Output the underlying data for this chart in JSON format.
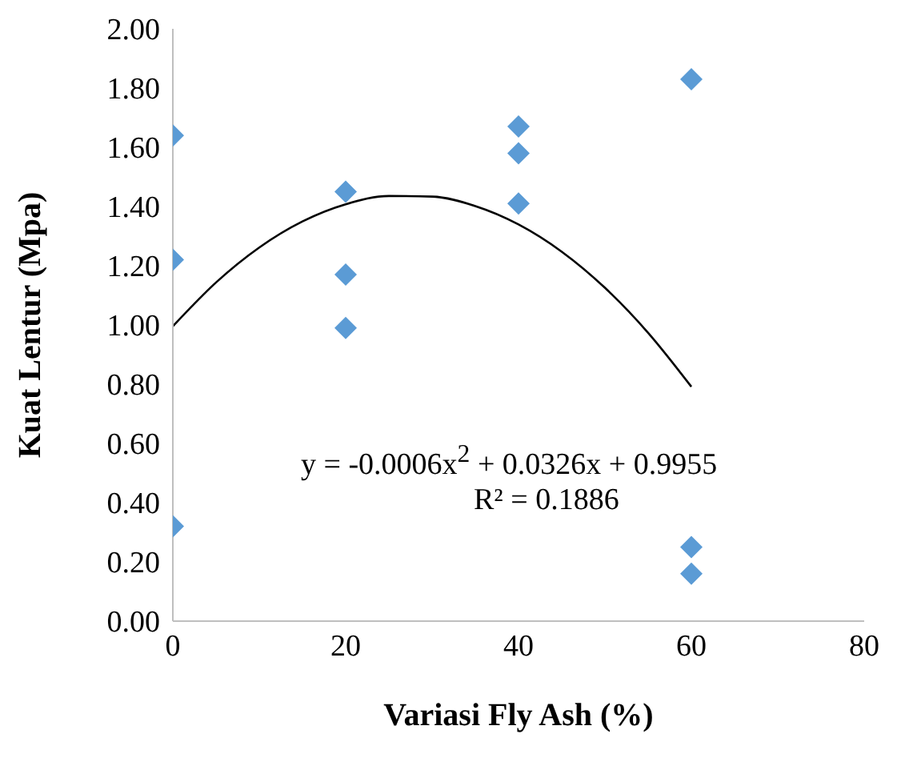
{
  "chart_data": {
    "type": "scatter",
    "xlabel": "Variasi Fly Ash (%)",
    "ylabel": "Kuat  Lentur (Mpa)",
    "xlim": [
      0,
      80
    ],
    "xticks": [
      0,
      20,
      40,
      60,
      80
    ],
    "ylim": [
      0,
      2
    ],
    "yticks": [
      {
        "value": 0,
        "label": "0.00"
      },
      {
        "value": 0.2,
        "label": "0.20"
      },
      {
        "value": 0.4,
        "label": "0.40"
      },
      {
        "value": 0.6,
        "label": "0.60"
      },
      {
        "value": 0.8,
        "label": "0.80"
      },
      {
        "value": 1,
        "label": "1.00"
      },
      {
        "value": 1.2,
        "label": "1.20"
      },
      {
        "value": 1.4,
        "label": "1.40"
      },
      {
        "value": 1.6,
        "label": "1.60"
      },
      {
        "value": 1.8,
        "label": "1.80"
      },
      {
        "value": 2,
        "label": "2.00"
      }
    ],
    "marker": "diamond",
    "series": [
      {
        "color": "#5b9bd5",
        "x": [
          0,
          0,
          0,
          20,
          20,
          20,
          40,
          40,
          40,
          60,
          60,
          60
        ],
        "values": [
          1.64,
          1.22,
          0.32,
          1.45,
          1.17,
          0.99,
          1.67,
          1.58,
          1.41,
          1.83,
          0.25,
          0.16
        ]
      },
      {
        "type": "line",
        "color": "#000000",
        "marker": "none",
        "x": [
          0,
          5,
          10,
          15,
          20,
          25,
          30,
          35,
          40,
          45,
          50,
          55,
          60
        ],
        "values": [
          0.9955,
          1.1435,
          1.2615,
          1.3495,
          1.4075,
          1.4355,
          1.4335,
          1.4015,
          1.3395,
          1.2475,
          1.1255,
          0.9735,
          0.7915
        ]
      }
    ],
    "annotations": [
      "y = -0.0006x$^{2}$ + 0.0326x + 0.9955",
      "R² = 0.1886"
    ]
  }
}
